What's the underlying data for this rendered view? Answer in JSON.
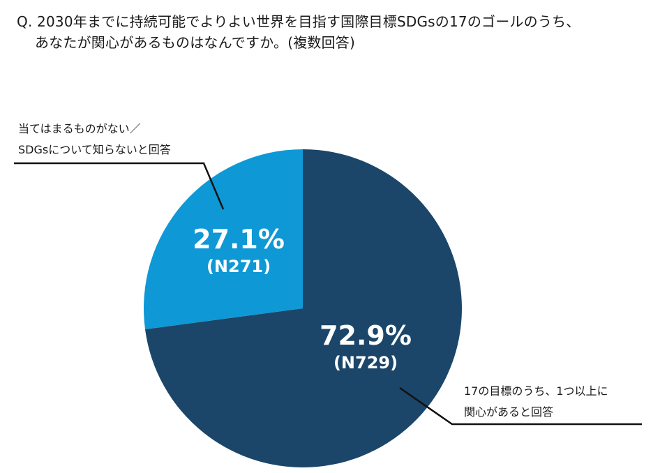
{
  "question": {
    "line1": "Q. 2030年までに持続可能でよりよい世界を目指す国際目標SDGsの17のゴールのうち、",
    "line2": "あなたが関心があるものはなんですか。(複数回答)"
  },
  "chart_data": {
    "type": "pie",
    "start_angle_deg": 0,
    "direction": "clockwise",
    "slices": [
      {
        "label_lines": [
          "17の目標のうち、1つ以上に",
          "関心があると回答"
        ],
        "value": 72.9,
        "percent_label": "72.9%",
        "count_label": "(N729)",
        "color": "#1b4669"
      },
      {
        "label_lines": [
          "当てはまるものがない／",
          "SDGsについて知らないと回答"
        ],
        "value": 27.1,
        "percent_label": "27.1%",
        "count_label": "(N271)",
        "color": "#0e98d6"
      }
    ]
  }
}
